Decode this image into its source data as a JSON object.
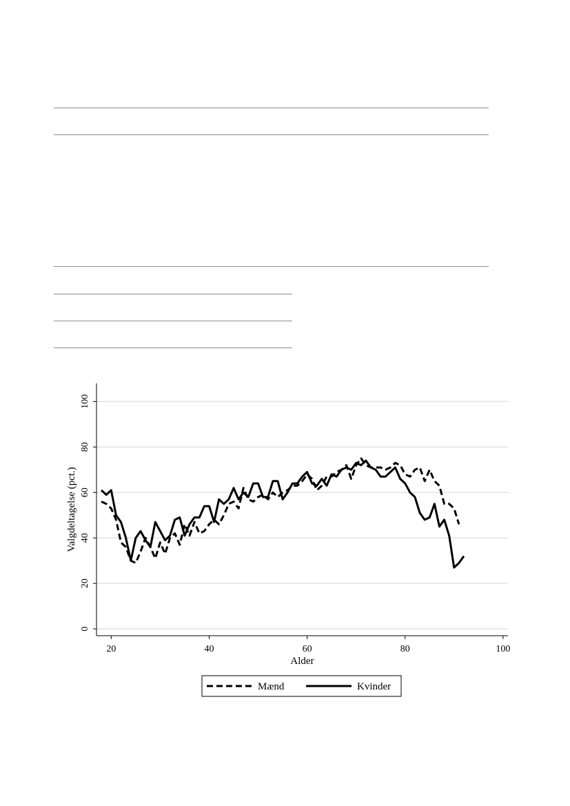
{
  "chart_data": {
    "type": "line",
    "title": "",
    "xlabel": "Alder",
    "ylabel": "Valgdeltagelse (pct.)",
    "xlim": [
      17,
      101
    ],
    "ylim": [
      -3,
      108
    ],
    "x_ticks": [
      20,
      40,
      60,
      80,
      100
    ],
    "y_ticks": [
      0,
      20,
      40,
      60,
      80,
      100
    ],
    "grid": "horizontal",
    "legend_position": "bottom",
    "series": [
      {
        "name": "Mænd",
        "style": "dashed",
        "x": [
          18,
          19,
          20,
          21,
          22,
          23,
          24,
          25,
          26,
          27,
          28,
          29,
          30,
          31,
          32,
          33,
          34,
          35,
          36,
          37,
          38,
          39,
          40,
          41,
          42,
          43,
          44,
          45,
          46,
          47,
          48,
          49,
          50,
          51,
          52,
          53,
          54,
          55,
          56,
          57,
          58,
          59,
          60,
          61,
          62,
          63,
          64,
          65,
          66,
          67,
          68,
          69,
          70,
          71,
          72,
          73,
          74,
          75,
          76,
          77,
          78,
          79,
          80,
          81,
          82,
          83,
          84,
          85,
          86,
          87,
          88,
          89,
          90,
          91
        ],
        "values": [
          56,
          55,
          53,
          48,
          38,
          36,
          30,
          29,
          34,
          40,
          36,
          31,
          38,
          33,
          40,
          42,
          37,
          46,
          41,
          47,
          42,
          43,
          46,
          48,
          46,
          50,
          55,
          56,
          53,
          62,
          57,
          56,
          58,
          59,
          57,
          60,
          58,
          60,
          61,
          63,
          63,
          65,
          68,
          66,
          61,
          63,
          67,
          67,
          69,
          70,
          72,
          66,
          72,
          75,
          72,
          71,
          71,
          71,
          70,
          71,
          73,
          72,
          68,
          67,
          70,
          71,
          65,
          70,
          65,
          63,
          55,
          55,
          53,
          46
        ]
      },
      {
        "name": "Kvinder",
        "style": "solid",
        "x": [
          18,
          19,
          20,
          21,
          22,
          23,
          24,
          25,
          26,
          27,
          28,
          29,
          30,
          31,
          32,
          33,
          34,
          35,
          36,
          37,
          38,
          39,
          40,
          41,
          42,
          43,
          44,
          45,
          46,
          47,
          48,
          49,
          50,
          51,
          52,
          53,
          54,
          55,
          56,
          57,
          58,
          59,
          60,
          61,
          62,
          63,
          64,
          65,
          66,
          67,
          68,
          69,
          70,
          71,
          72,
          73,
          74,
          75,
          76,
          77,
          78,
          79,
          80,
          81,
          82,
          83,
          84,
          85,
          86,
          87,
          88,
          89,
          90,
          91,
          92
        ],
        "values": [
          61,
          59,
          61,
          50,
          47,
          40,
          30,
          40,
          43,
          39,
          36,
          47,
          43,
          39,
          41,
          48,
          49,
          41,
          46,
          49,
          49,
          54,
          54,
          47,
          57,
          55,
          57,
          62,
          57,
          60,
          58,
          64,
          64,
          58,
          58,
          65,
          65,
          57,
          60,
          64,
          64,
          67,
          69,
          64,
          63,
          66,
          63,
          68,
          67,
          70,
          71,
          70,
          73,
          72,
          74,
          71,
          70,
          67,
          67,
          69,
          71,
          66,
          64,
          60,
          58,
          51,
          48,
          49,
          55,
          45,
          48,
          41,
          27,
          29,
          32
        ]
      }
    ]
  }
}
